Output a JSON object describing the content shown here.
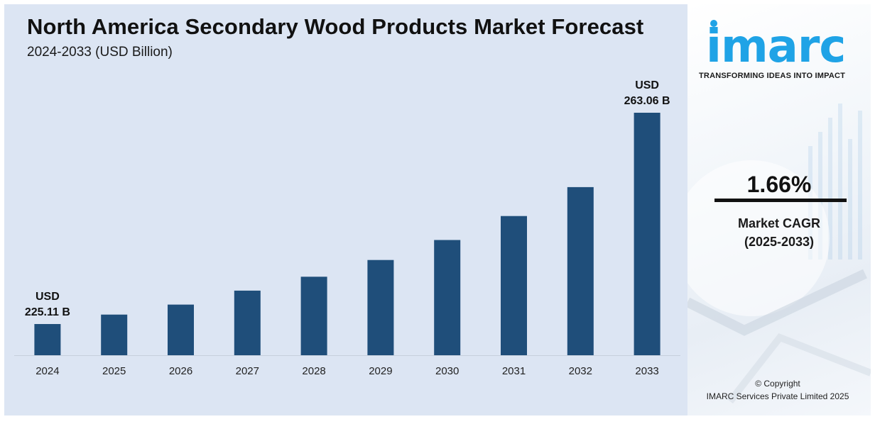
{
  "title": "North America Secondary Wood Products Market Forecast",
  "subtitle": "2024-2033 (USD Billion)",
  "chart_data": {
    "type": "bar",
    "categories": [
      "2024",
      "2025",
      "2026",
      "2027",
      "2028",
      "2029",
      "2030",
      "2031",
      "2032",
      "2033"
    ],
    "values": [
      225.11,
      226.8,
      228.6,
      231.1,
      233.6,
      236.6,
      240.2,
      244.5,
      249.7,
      263.06
    ],
    "bar_color": "#1f4e7a",
    "annotations": [
      {
        "category": "2024",
        "line1": "USD",
        "line2": "225.11 B"
      },
      {
        "category": "2033",
        "line1": "USD",
        "line2": "263.06 B"
      }
    ],
    "xlabel": "",
    "ylabel": ""
  },
  "sidebar": {
    "logo_text": "imarc",
    "tagline": "TRANSFORMING IDEAS INTO IMPACT",
    "cagr_value": "1.66%",
    "cagr_label_line1": "Market CAGR",
    "cagr_label_line2": "(2025-2033)",
    "copyright_line1": "© Copyright",
    "copyright_line2": "IMARC Services Private Limited 2025",
    "accent_color": "#1fa3e6"
  }
}
